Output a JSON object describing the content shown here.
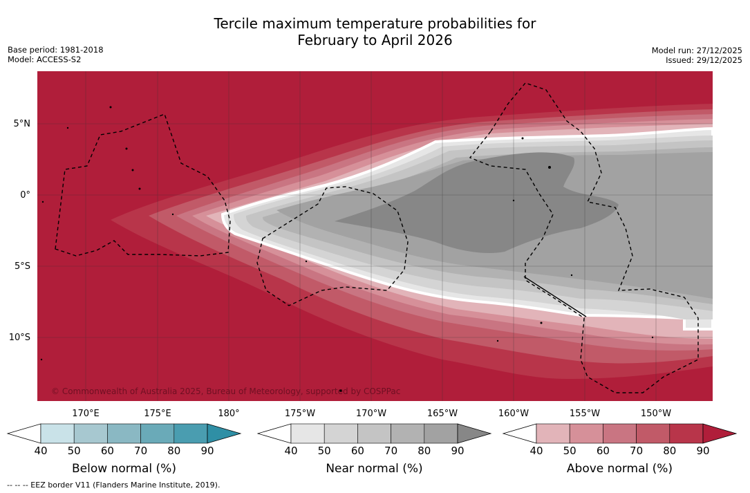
{
  "header": {
    "title_line1": "Tercile maximum temperature probabilities for",
    "title_line2": "February to April 2026",
    "base_period": "Base period: 1981-2018",
    "model": "Model: ACCESS-S2",
    "model_run": "Model run: 27/12/2025",
    "issued": "Issued: 29/12/2025"
  },
  "map": {
    "copyright": "© Commonwealth of Australia 2025, Bureau of Meteorology, supported by COSPPac",
    "lat_labels": [
      "5°N",
      "0°",
      "5°S",
      "10°S"
    ],
    "lon_labels": [
      "170°E",
      "175°E",
      "180°",
      "175°W",
      "170°W",
      "165°W",
      "160°W",
      "155°W",
      "150°W"
    ]
  },
  "colorbars": [
    {
      "title": "Below normal (%)",
      "ticks": [
        "40",
        "50",
        "60",
        "70",
        "80",
        "90"
      ],
      "colors": [
        "#c9e2e8",
        "#a7c8d0",
        "#8ab8c3",
        "#6aaab8",
        "#4a9db0",
        "#2f8fa5"
      ]
    },
    {
      "title": "Near normal (%)",
      "ticks": [
        "40",
        "50",
        "60",
        "70",
        "80",
        "90"
      ],
      "colors": [
        "#e6e6e6",
        "#d4d4d4",
        "#c4c4c4",
        "#b2b2b2",
        "#a2a2a2",
        "#878787"
      ]
    },
    {
      "title": "Above normal (%)",
      "ticks": [
        "40",
        "50",
        "60",
        "70",
        "80",
        "90"
      ],
      "colors": [
        "#e2b4b9",
        "#d69099",
        "#c97582",
        "#c15a68",
        "#b8354a",
        "#b01e3a"
      ]
    }
  ],
  "footer": {
    "eez_note": "--  --  -- EEZ border V11 (Flanders Marine Institute, 2019)."
  }
}
